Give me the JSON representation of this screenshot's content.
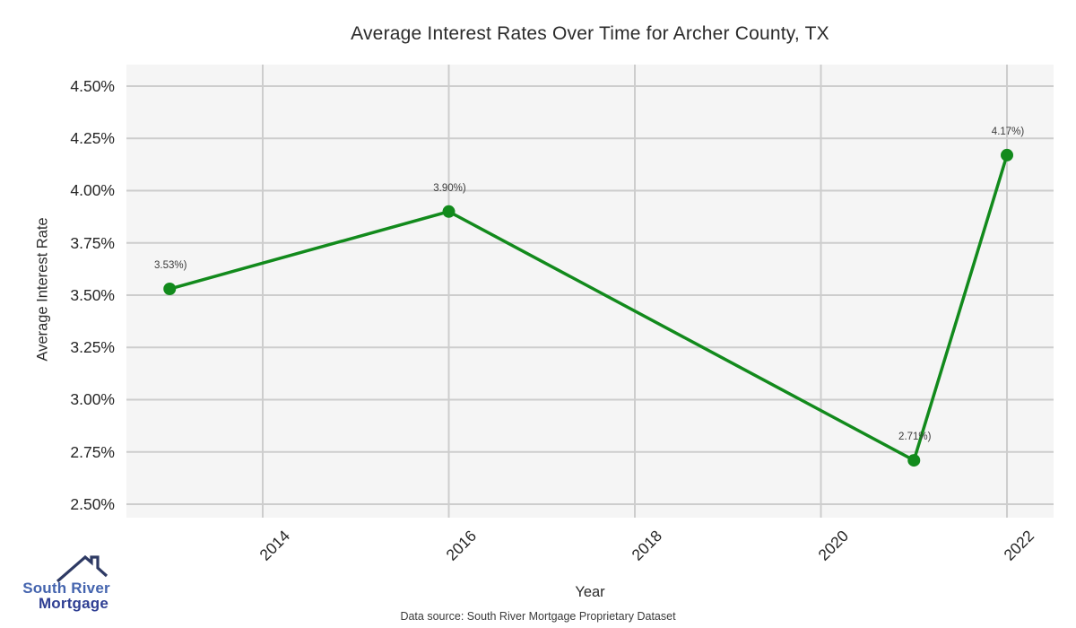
{
  "title": "Average Interest Rates Over Time for Archer County, TX",
  "footer": "Data source: South River Mortgage Proprietary Dataset",
  "logo": {
    "line1": "South River",
    "line2": "Mortgage"
  },
  "chart_data": {
    "type": "line",
    "title": "Average Interest Rates Over Time for Archer County, TX",
    "xlabel": "Year",
    "ylabel": "Average Interest Rate",
    "x": [
      2013,
      2016,
      2021,
      2022
    ],
    "y": [
      3.53,
      3.9,
      2.71,
      4.17
    ],
    "point_labels": [
      "3.53%)",
      "3.90%)",
      "2.71%)",
      "4.17%)"
    ],
    "x_ticks": [
      2014,
      2016,
      2018,
      2020,
      2022
    ],
    "y_ticks": [
      "4.50%",
      "4.25%",
      "4.00%",
      "3.75%",
      "3.50%",
      "3.25%",
      "3.00%",
      "2.75%",
      "2.50%"
    ],
    "y_tick_values": [
      4.5,
      4.25,
      4.0,
      3.75,
      3.5,
      3.25,
      3.0,
      2.75,
      2.5
    ],
    "xlim": [
      2012.535,
      2022.501
    ],
    "ylim": [
      2.4356,
      4.603
    ],
    "grid": true,
    "legend": "none",
    "line_color": "#128a1c",
    "grid_color": "#cdcdcd",
    "plot_bg": "#f5f5f5"
  }
}
